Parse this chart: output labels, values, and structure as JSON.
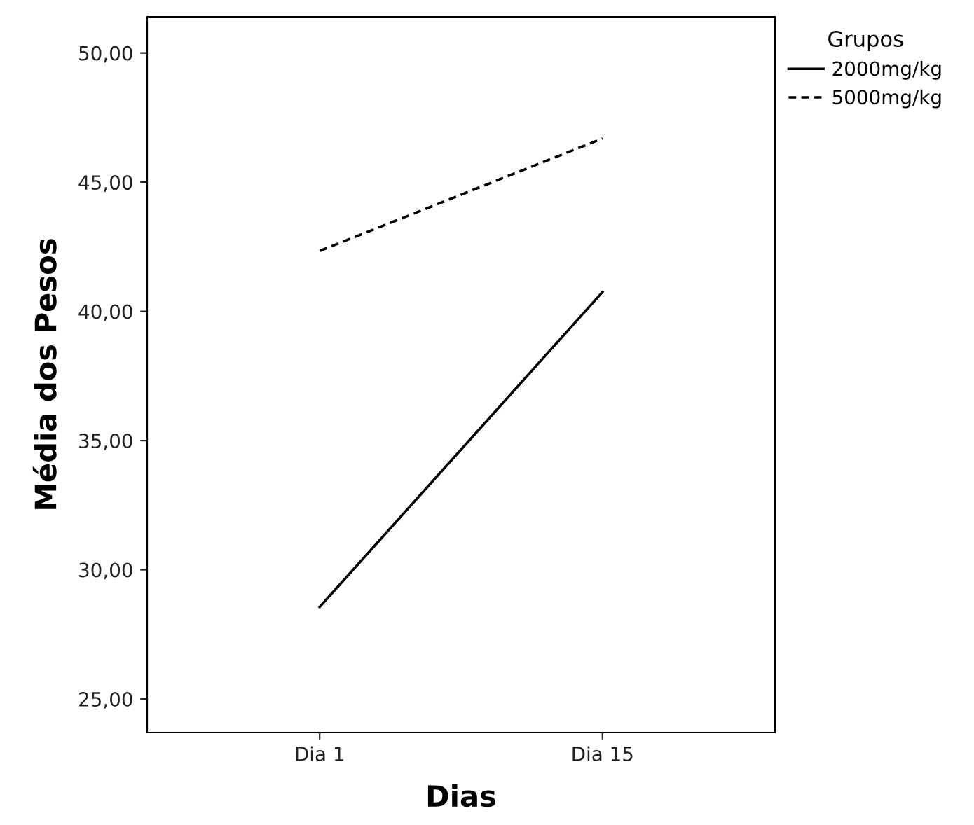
{
  "chart_data": {
    "type": "line",
    "xlabel": "Dias",
    "ylabel": "Média dos Pesos",
    "legend_title": "Grupos",
    "categories": [
      "Dia 1",
      "Dia 15"
    ],
    "series": [
      {
        "name": "2000mg/kg",
        "color": "#000000",
        "line_style": "solid",
        "values": [
          28.56,
          40.75
        ]
      },
      {
        "name": "5000mg/kg",
        "color": "#000000",
        "line_style": "dashed",
        "values": [
          42.34,
          46.69
        ]
      }
    ],
    "ylim": [
      23.7,
      51.4
    ],
    "yticks": [
      {
        "value": 25,
        "label": "25,00"
      },
      {
        "value": 30,
        "label": "30,00"
      },
      {
        "value": 35,
        "label": "35,00"
      },
      {
        "value": 40,
        "label": "40,00"
      },
      {
        "value": 45,
        "label": "45,00"
      },
      {
        "value": 50,
        "label": "50,00"
      }
    ],
    "grid": false,
    "legend": "top right",
    "marker": "none"
  }
}
